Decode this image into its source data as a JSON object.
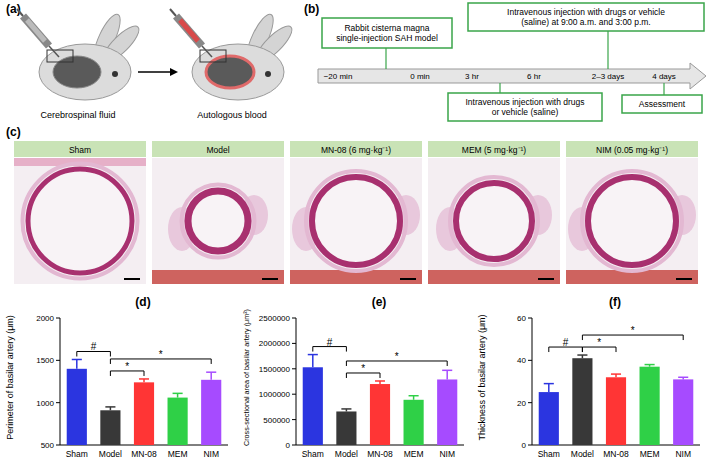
{
  "panel_labels": [
    "(a)",
    "(b)",
    "(c)",
    "(d)",
    "(e)",
    "(f)"
  ],
  "procedure": {
    "steps": [
      "Cerebrospinal fluid",
      "Autologous blood"
    ]
  },
  "timeline": {
    "boxes": [
      "Rabbit cisterna magna single-injection SAH model",
      "Intravenous injection with drugs or vehicle (saline) at 9:00 a.m. and 3:00 p.m.",
      "Intravenous injection with drugs or vehicle (saline)",
      "Assessment"
    ],
    "times": [
      "−20 min",
      "0 min",
      "3 hr",
      "6 hr",
      "2–3 days",
      "4 days"
    ]
  },
  "histology": {
    "groups": [
      "Sham",
      "Model",
      "MN-08 (6 mg·kg⁻¹)",
      "MEM (5 mg·kg⁻¹)",
      "NIM (0.05 mg·kg⁻¹)"
    ]
  },
  "chart_data": [
    {
      "type": "bar",
      "ylabel": "Perimeter of basilar artery (μm)",
      "categories": [
        "Sham",
        "Model",
        "MN-08",
        "MEM",
        "NIM"
      ],
      "values": [
        1400,
        910,
        1240,
        1060,
        1270
      ],
      "errors": [
        110,
        40,
        40,
        50,
        90
      ],
      "colors": [
        "#2b35e0",
        "#383838",
        "#ff3535",
        "#2fd047",
        "#a64bff"
      ],
      "ylim": [
        500,
        2000
      ],
      "yticks": [
        500,
        1000,
        1500,
        2000
      ],
      "significance": [
        {
          "groups": [
            "Sham",
            "Model"
          ],
          "label": "#"
        },
        {
          "groups": [
            "Model",
            "MN-08"
          ],
          "label": "*"
        },
        {
          "groups": [
            "Model",
            "NIM"
          ],
          "label": "*"
        }
      ]
    },
    {
      "type": "bar",
      "ylabel": "Cross-sectional area of basilar artery (μm²)",
      "categories": [
        "Sham",
        "Model",
        "MN-08",
        "MEM",
        "NIM"
      ],
      "values": [
        1530000,
        660000,
        1200000,
        890000,
        1290000
      ],
      "errors": [
        250000,
        50000,
        60000,
        80000,
        180000
      ],
      "colors": [
        "#2b35e0",
        "#383838",
        "#ff3535",
        "#2fd047",
        "#a64bff"
      ],
      "ylim": [
        0,
        2500000
      ],
      "yticks": [
        0,
        500000,
        1000000,
        1500000,
        2000000,
        2500000
      ],
      "significance": [
        {
          "groups": [
            "Sham",
            "Model"
          ],
          "label": "#"
        },
        {
          "groups": [
            "Model",
            "MN-08"
          ],
          "label": "*"
        },
        {
          "groups": [
            "Model",
            "NIM"
          ],
          "label": "*"
        }
      ]
    },
    {
      "type": "bar",
      "ylabel": "Thickness of basilar artery (μm)",
      "categories": [
        "Sham",
        "Model",
        "MN-08",
        "MEM",
        "NIM"
      ],
      "values": [
        25,
        41,
        32,
        37,
        31
      ],
      "errors": [
        4,
        1.5,
        1.5,
        1,
        1
      ],
      "colors": [
        "#2b35e0",
        "#383838",
        "#ff3535",
        "#2fd047",
        "#a64bff"
      ],
      "ylim": [
        0,
        60
      ],
      "yticks": [
        0,
        20,
        40,
        60
      ],
      "significance": [
        {
          "groups": [
            "Sham",
            "Model"
          ],
          "label": "#"
        },
        {
          "groups": [
            "Model",
            "MN-08"
          ],
          "label": "*"
        },
        {
          "groups": [
            "Model",
            "NIM"
          ],
          "label": "*"
        }
      ]
    }
  ]
}
